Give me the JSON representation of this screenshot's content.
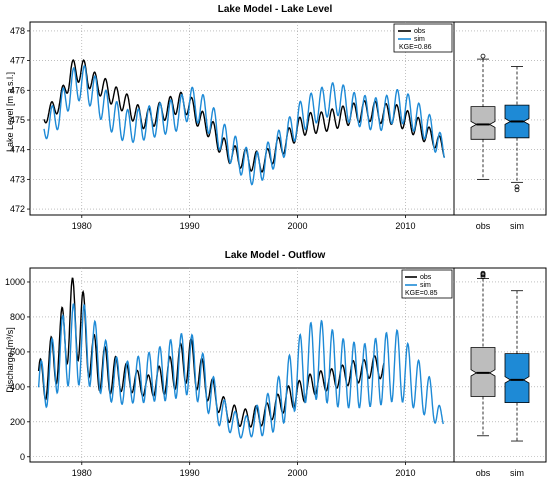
{
  "chart_data": [
    {
      "type": "line",
      "title": "Lake Model - Lake Level",
      "ylabel": "Lake Level [m a.s.l.]",
      "xlabel": "",
      "xlim": [
        1975.2,
        2014.5
      ],
      "ylim": [
        471.8,
        478.3
      ],
      "x_ticks": [
        "1980",
        "1990",
        "2000",
        "2010"
      ],
      "y_ticks": [
        "472",
        "473",
        "474",
        "475",
        "476",
        "477",
        "478"
      ],
      "grid": true,
      "legend_position": "top-right",
      "legend_note": "KGE=0.86",
      "series": [
        {
          "name": "obs",
          "color": "#000000",
          "x": [
            1976.5,
            1978,
            1979,
            1980,
            1981,
            1982,
            1983,
            1984,
            1985,
            1986,
            1987,
            1988,
            1989,
            1990,
            1991,
            1992,
            1993,
            1994,
            1995,
            1996,
            1997,
            1998,
            1999,
            2000,
            2001,
            2002,
            2003,
            2004,
            2005,
            2006,
            2007,
            2008,
            2009,
            2010,
            2011,
            2012,
            2013,
            2013.6
          ],
          "y": [
            475.1,
            475.6,
            476.6,
            476.7,
            476.3,
            476.1,
            475.8,
            475.6,
            475.2,
            475.0,
            475.2,
            475.4,
            475.6,
            475.5,
            475.0,
            474.7,
            474.1,
            473.8,
            473.7,
            473.6,
            473.6,
            474.0,
            474.3,
            474.7,
            474.9,
            474.9,
            475.0,
            475.1,
            475.2,
            475.3,
            475.3,
            475.2,
            475.2,
            475.0,
            474.8,
            474.5,
            474.3,
            473.9
          ],
          "amplitude": [
            0.25,
            0.3,
            0.4,
            0.4,
            0.35,
            0.35,
            0.35,
            0.35,
            0.35,
            0.35,
            0.35,
            0.35,
            0.35,
            0.35,
            0.35,
            0.35,
            0.35,
            0.35,
            0.35,
            0.35,
            0.35,
            0.35,
            0.35,
            0.35,
            0.35,
            0.35,
            0.35,
            0.35,
            0.35,
            0.35,
            0.35,
            0.35,
            0.35,
            0.35,
            0.35,
            0.3,
            0.3,
            0.2
          ],
          "boxplot": {
            "label": "obs",
            "min": 473.0,
            "q1": 474.35,
            "median": 474.85,
            "q3": 475.45,
            "max": 477.05,
            "notch": 0.1,
            "outliers": [
              477.15
            ]
          }
        },
        {
          "name": "sim",
          "color": "#1e8ad6",
          "x": [
            1976.5,
            1978,
            1979,
            1980,
            1981,
            1982,
            1983,
            1984,
            1985,
            1986,
            1987,
            1988,
            1989,
            1990,
            1991,
            1992,
            1993,
            1994,
            1995,
            1996,
            1997,
            1998,
            1999,
            2000,
            2001,
            2002,
            2003,
            2004,
            2005,
            2006,
            2007,
            2008,
            2009,
            2010,
            2011,
            2012,
            2013,
            2013.6
          ],
          "y": [
            474.7,
            475.3,
            476.1,
            476.3,
            476.0,
            475.5,
            475.1,
            474.8,
            474.8,
            474.9,
            475.0,
            475.1,
            475.2,
            475.6,
            475.4,
            475.0,
            474.4,
            474.0,
            473.6,
            473.3,
            473.6,
            474.0,
            474.4,
            475.0,
            475.3,
            475.5,
            475.7,
            475.7,
            475.4,
            475.3,
            475.2,
            475.2,
            475.5,
            475.4,
            475.1,
            474.8,
            474.3,
            473.9
          ],
          "amplitude": [
            0.4,
            0.55,
            0.6,
            0.6,
            0.6,
            0.6,
            0.6,
            0.55,
            0.55,
            0.55,
            0.55,
            0.55,
            0.55,
            0.55,
            0.55,
            0.55,
            0.55,
            0.55,
            0.55,
            0.55,
            0.55,
            0.55,
            0.55,
            0.55,
            0.55,
            0.55,
            0.55,
            0.55,
            0.55,
            0.55,
            0.55,
            0.55,
            0.55,
            0.55,
            0.55,
            0.5,
            0.5,
            0.3
          ],
          "boxplot": {
            "label": "sim",
            "min": 472.9,
            "q1": 474.4,
            "median": 474.95,
            "q3": 475.5,
            "max": 476.8,
            "notch": 0.1,
            "outliers": [
              472.75,
              472.65
            ]
          }
        }
      ]
    },
    {
      "type": "line",
      "title": "Lake Model - Outflow",
      "ylabel": "Discharge [m³/s]",
      "xlabel": "",
      "xlim": [
        1975.2,
        2014.5
      ],
      "ylim": [
        -30,
        1080
      ],
      "x_ticks": [
        "1980",
        "1990",
        "2000",
        "2010"
      ],
      "y_ticks": [
        "0",
        "200",
        "400",
        "600",
        "800",
        "1000"
      ],
      "grid": true,
      "legend_position": "top-right",
      "legend_note": "KGE=0.85",
      "series": [
        {
          "name": "obs",
          "color": "#000000",
          "x": [
            1976.0,
            1977,
            1978,
            1979,
            1980,
            1981,
            1982,
            1983,
            1984,
            1985,
            1986,
            1987,
            1988,
            1989,
            1990,
            1991,
            1992,
            1993,
            1994,
            1995,
            1996,
            1997,
            1998,
            1999,
            2000,
            2001,
            2002,
            2003,
            2004,
            2005,
            2006,
            2007,
            2008
          ],
          "y": [
            420,
            500,
            640,
            800,
            760,
            560,
            500,
            470,
            460,
            430,
            400,
            430,
            460,
            520,
            560,
            470,
            380,
            290,
            240,
            220,
            230,
            240,
            290,
            330,
            360,
            400,
            430,
            440,
            460,
            480,
            490,
            520,
            500
          ],
          "amplitude": [
            120,
            160,
            180,
            230,
            220,
            150,
            140,
            110,
            80,
            70,
            60,
            80,
            100,
            120,
            130,
            110,
            80,
            60,
            60,
            50,
            60,
            60,
            60,
            70,
            70,
            70,
            60,
            60,
            60,
            70,
            60,
            60,
            60
          ],
          "boxplot": {
            "label": "obs",
            "min": 120,
            "q1": 345,
            "median": 480,
            "q3": 625,
            "max": 1020,
            "notch": 18,
            "outliers": [
              1030,
              1040,
              1045,
              1050
            ]
          }
        },
        {
          "name": "sim",
          "color": "#1e8ad6",
          "x": [
            1976.0,
            1977,
            1978,
            1979,
            1980,
            1981,
            1982,
            1983,
            1984,
            1985,
            1986,
            1987,
            1988,
            1989,
            1990,
            1991,
            1992,
            1993,
            1994,
            1995,
            1996,
            1997,
            1998,
            1999,
            2000,
            2001,
            2002,
            2003,
            2004,
            2005,
            2006,
            2007,
            2008,
            2009,
            2010,
            2011,
            2012,
            2013,
            2013.5
          ],
          "y": [
            380,
            470,
            590,
            640,
            650,
            600,
            520,
            440,
            420,
            440,
            450,
            470,
            490,
            520,
            540,
            460,
            360,
            250,
            200,
            160,
            200,
            230,
            290,
            380,
            480,
            540,
            560,
            520,
            480,
            470,
            460,
            480,
            500,
            530,
            490,
            420,
            360,
            260,
            190
          ],
          "amplitude": [
            140,
            170,
            200,
            230,
            240,
            200,
            170,
            140,
            120,
            130,
            140,
            150,
            170,
            180,
            180,
            160,
            130,
            90,
            70,
            60,
            80,
            110,
            140,
            170,
            200,
            220,
            230,
            220,
            200,
            190,
            180,
            190,
            200,
            210,
            180,
            150,
            130,
            80,
            20
          ],
          "boxplot": {
            "label": "sim",
            "min": 90,
            "q1": 310,
            "median": 440,
            "q3": 590,
            "max": 950,
            "notch": 18,
            "outliers": []
          }
        }
      ]
    }
  ]
}
